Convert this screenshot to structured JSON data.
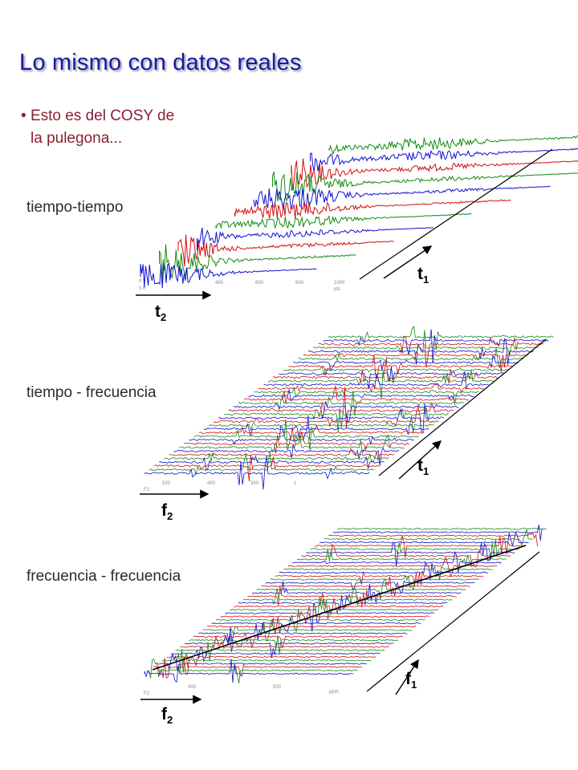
{
  "title": "Lo mismo con datos reales",
  "bullet": {
    "symbol": "•",
    "line1": "Esto es del COSY de",
    "line2": "la pulegona..."
  },
  "panels": [
    {
      "label": "tiempo-tiempo",
      "axis_front": {
        "main": "t",
        "sub": "2"
      },
      "axis_side": {
        "main": "t",
        "sub": "1"
      },
      "ticks": [
        "0",
        "0.0",
        "400",
        "600",
        "800",
        "1000",
        "pts"
      ]
    },
    {
      "label": "tiempo - frecuencia",
      "axis_front": {
        "main": "f",
        "sub": "2"
      },
      "axis_side": {
        "main": "t",
        "sub": "1"
      },
      "ticks": [
        "F2",
        "520",
        "450",
        "300",
        "1"
      ]
    },
    {
      "label": "frecuencia - frecuencia",
      "axis_front": {
        "main": "f",
        "sub": "2"
      },
      "axis_side": {
        "main": "f",
        "sub": "1"
      },
      "ticks": [
        "F2",
        "400",
        "500",
        "ppm"
      ]
    }
  ],
  "colors": {
    "title": "#1a1a9e",
    "bullet": "#8b1f33",
    "trace_blue": "#1010d0",
    "trace_green": "#138a13",
    "trace_red": "#d01010"
  }
}
